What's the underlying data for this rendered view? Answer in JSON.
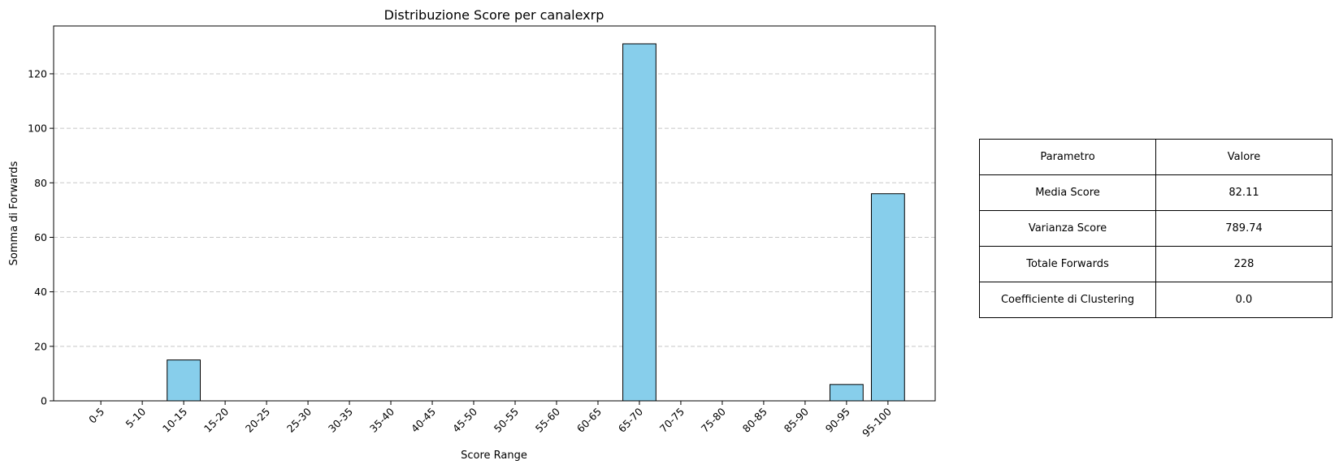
{
  "chart_data": {
    "type": "bar",
    "title": "Distribuzione Score per canalexrp",
    "xlabel": "Score Range",
    "ylabel": "Somma di Forwards",
    "categories": [
      "0-5",
      "5-10",
      "10-15",
      "15-20",
      "20-25",
      "25-30",
      "30-35",
      "35-40",
      "40-45",
      "45-50",
      "50-55",
      "55-60",
      "60-65",
      "65-70",
      "70-75",
      "75-80",
      "80-85",
      "85-90",
      "90-95",
      "95-100"
    ],
    "values": [
      0,
      0,
      15,
      0,
      0,
      0,
      0,
      0,
      0,
      0,
      0,
      0,
      0,
      131,
      0,
      0,
      0,
      0,
      6,
      76
    ],
    "ylim": [
      0,
      137.55
    ],
    "yticks": [
      0,
      20,
      40,
      60,
      80,
      100,
      120
    ],
    "grid": "y-dashed",
    "bar_color": "#87ceeb",
    "bar_edge_color": "#000000"
  },
  "table": {
    "headers": [
      "Parametro",
      "Valore"
    ],
    "rows": [
      [
        "Media Score",
        "82.11"
      ],
      [
        "Varianza Score",
        "789.74"
      ],
      [
        "Totale Forwards",
        "228"
      ],
      [
        "Coefficiente di Clustering",
        "0.0"
      ]
    ]
  }
}
